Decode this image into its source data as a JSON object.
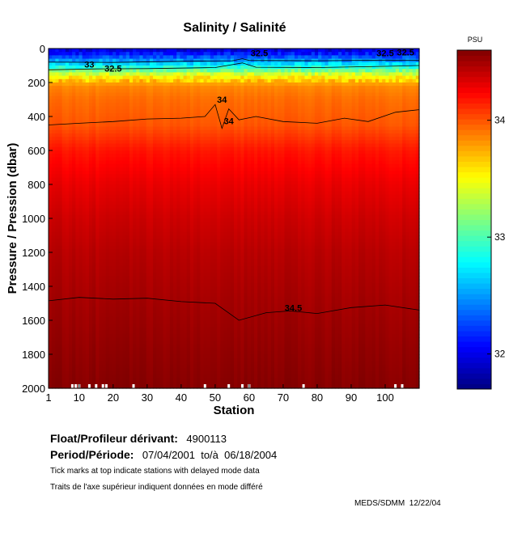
{
  "chart_data": {
    "type": "heatmap",
    "title": "Salinity / Salinité",
    "xlabel": "Station",
    "ylabel": "Pressure / Pression (dbar)",
    "xlim": [
      1,
      110
    ],
    "ylim": [
      2000,
      0
    ],
    "xticks": [
      1,
      10,
      20,
      30,
      40,
      50,
      60,
      70,
      80,
      90,
      100
    ],
    "yticks": [
      0,
      200,
      400,
      600,
      800,
      1000,
      1200,
      1400,
      1600,
      1800,
      2000
    ],
    "colorbar": {
      "label": "PSU",
      "range": [
        31.7,
        34.6
      ],
      "ticks": [
        32,
        33,
        34
      ],
      "colormap": "jet"
    },
    "profile": [
      {
        "pressure": 0,
        "salinity": 31.9
      },
      {
        "pressure": 40,
        "salinity": 32.2
      },
      {
        "pressure": 80,
        "salinity": 32.6
      },
      {
        "pressure": 120,
        "salinity": 33.0
      },
      {
        "pressure": 160,
        "salinity": 33.5
      },
      {
        "pressure": 220,
        "salinity": 33.85
      },
      {
        "pressure": 300,
        "salinity": 33.93
      },
      {
        "pressure": 450,
        "salinity": 34.0
      },
      {
        "pressure": 600,
        "salinity": 34.18
      },
      {
        "pressure": 800,
        "salinity": 34.3
      },
      {
        "pressure": 1000,
        "salinity": 34.38
      },
      {
        "pressure": 1200,
        "salinity": 34.44
      },
      {
        "pressure": 1500,
        "salinity": 34.5
      },
      {
        "pressure": 1800,
        "salinity": 34.55
      },
      {
        "pressure": 2000,
        "salinity": 34.58
      }
    ],
    "contours": [
      {
        "level": "32.5",
        "pressure_by_station": [
          [
            1,
            80
          ],
          [
            20,
            82
          ],
          [
            40,
            75
          ],
          [
            55,
            72
          ],
          [
            58,
            60
          ],
          [
            60,
            70
          ],
          [
            80,
            72
          ],
          [
            100,
            68
          ],
          [
            110,
            70
          ]
        ]
      },
      {
        "level": "33",
        "pressure_by_station": [
          [
            1,
            125
          ],
          [
            15,
            120
          ],
          [
            30,
            118
          ],
          [
            50,
            112
          ],
          [
            58,
            85
          ],
          [
            62,
            110
          ],
          [
            80,
            112
          ],
          [
            100,
            105
          ],
          [
            110,
            100
          ]
        ]
      },
      {
        "level": "34",
        "pressure_by_station": [
          [
            1,
            450
          ],
          [
            10,
            440
          ],
          [
            20,
            430
          ],
          [
            30,
            415
          ],
          [
            40,
            410
          ],
          [
            47,
            400
          ],
          [
            50,
            330
          ],
          [
            52,
            470
          ],
          [
            54,
            355
          ],
          [
            57,
            420
          ],
          [
            62,
            400
          ],
          [
            70,
            430
          ],
          [
            80,
            440
          ],
          [
            88,
            410
          ],
          [
            95,
            430
          ],
          [
            103,
            375
          ],
          [
            110,
            360
          ]
        ]
      },
      {
        "level": "34.5",
        "pressure_by_station": [
          [
            1,
            1485
          ],
          [
            10,
            1465
          ],
          [
            20,
            1475
          ],
          [
            30,
            1470
          ],
          [
            40,
            1490
          ],
          [
            50,
            1500
          ],
          [
            57,
            1600
          ],
          [
            65,
            1555
          ],
          [
            72,
            1545
          ],
          [
            80,
            1560
          ],
          [
            90,
            1525
          ],
          [
            100,
            1510
          ],
          [
            110,
            1540
          ]
        ]
      }
    ],
    "contour_labels": [
      {
        "text": "33",
        "station": 13,
        "pressure": 112
      },
      {
        "text": "32.5",
        "station": 20,
        "pressure": 135
      },
      {
        "text": "34",
        "station": 52,
        "pressure": 318
      },
      {
        "text": "34",
        "station": 54,
        "pressure": 445
      },
      {
        "text": "32.5",
        "station": 63,
        "pressure": 45
      },
      {
        "text": "32.5",
        "station": 100,
        "pressure": 45
      },
      {
        "text": "32.5",
        "station": 106,
        "pressure": 40
      },
      {
        "text": "34.5",
        "station": 73,
        "pressure": 1545
      }
    ],
    "delayed_mode_stations": [
      8,
      9,
      10,
      13,
      15,
      17,
      18,
      26,
      47,
      54,
      58,
      60,
      76,
      103,
      105
    ]
  },
  "info": {
    "float_label": "Float/Profileur dérivant:",
    "float_id": "4900113",
    "period_label": "Period/Période:",
    "period_value": "07/04/2001  to/à  06/18/2004",
    "note1": "Tick marks at top indicate stations with delayed mode data",
    "note2": "Traits de l'axe supérieur indiquent données en mode différé",
    "credit": "MEDS/SDMM  12/22/04"
  }
}
